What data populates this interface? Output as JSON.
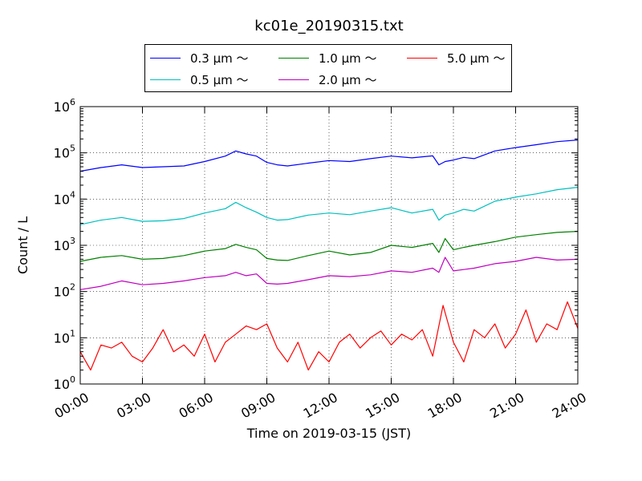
{
  "chart_data": {
    "type": "line",
    "title": "kc01e_20190315.txt",
    "xlabel": "Time on 2019-03-15 (JST)",
    "ylabel": "Count / L",
    "yscale": "log",
    "ylim": [
      1,
      1000000
    ],
    "yticks": [
      "10^0",
      "10^1",
      "10^2",
      "10^3",
      "10^4",
      "10^5",
      "10^6"
    ],
    "xlim": [
      0,
      24
    ],
    "xticks": [
      "00:00",
      "03:00",
      "06:00",
      "09:00",
      "12:00",
      "15:00",
      "18:00",
      "21:00",
      "24:00"
    ],
    "grid": true,
    "legend_position": "top",
    "series": [
      {
        "name": "0.3 μm ～",
        "color": "#0000ff",
        "x": [
          0,
          1,
          2,
          3,
          4,
          5,
          6,
          7,
          7.5,
          8,
          8.5,
          9,
          9.5,
          10,
          11,
          12,
          13,
          14,
          15,
          16,
          17,
          17.3,
          17.6,
          18,
          18.5,
          19,
          20,
          21,
          22,
          23,
          24
        ],
        "y": [
          40000,
          48000,
          55000,
          48000,
          50000,
          52000,
          65000,
          85000,
          110000,
          95000,
          85000,
          62000,
          55000,
          52000,
          60000,
          68000,
          65000,
          75000,
          85000,
          78000,
          86000,
          55000,
          65000,
          70000,
          80000,
          75000,
          110000,
          130000,
          150000,
          175000,
          190000
        ]
      },
      {
        "name": "0.5 μm ～",
        "color": "#00bfbf",
        "x": [
          0,
          1,
          2,
          3,
          4,
          5,
          6,
          7,
          7.5,
          8,
          8.5,
          9,
          9.5,
          10,
          11,
          12,
          13,
          14,
          15,
          16,
          17,
          17.3,
          17.6,
          18,
          18.5,
          19,
          20,
          21,
          22,
          23,
          24
        ],
        "y": [
          2800,
          3500,
          4000,
          3300,
          3400,
          3800,
          5000,
          6200,
          8500,
          6500,
          5200,
          4000,
          3500,
          3600,
          4500,
          5000,
          4600,
          5500,
          6500,
          5000,
          6000,
          3500,
          4500,
          5000,
          6000,
          5500,
          9000,
          11000,
          13000,
          16000,
          18000
        ]
      },
      {
        "name": "1.0 μm ～",
        "color": "#008000",
        "x": [
          0,
          1,
          2,
          3,
          4,
          5,
          6,
          7,
          7.5,
          8,
          8.5,
          9,
          9.5,
          10,
          11,
          12,
          13,
          14,
          15,
          16,
          17,
          17.3,
          17.6,
          18,
          18.5,
          19,
          20,
          21,
          22,
          23,
          24
        ],
        "y": [
          450,
          550,
          600,
          500,
          520,
          600,
          750,
          850,
          1050,
          900,
          800,
          520,
          480,
          470,
          600,
          750,
          620,
          700,
          1000,
          900,
          1100,
          700,
          1400,
          800,
          900,
          1000,
          1200,
          1500,
          1700,
          1900,
          2000
        ]
      },
      {
        "name": "2.0 μm ～",
        "color": "#bf00bf",
        "x": [
          0,
          1,
          2,
          3,
          4,
          5,
          6,
          7,
          7.5,
          8,
          8.5,
          9,
          9.5,
          10,
          11,
          12,
          13,
          14,
          15,
          16,
          17,
          17.3,
          17.6,
          18,
          18.5,
          19,
          20,
          21,
          22,
          23,
          24
        ],
        "y": [
          110,
          130,
          170,
          140,
          150,
          170,
          200,
          220,
          260,
          220,
          240,
          150,
          145,
          150,
          180,
          220,
          210,
          230,
          280,
          260,
          320,
          260,
          550,
          280,
          300,
          320,
          400,
          450,
          550,
          480,
          500
        ]
      },
      {
        "name": "5.0 μm ～",
        "color": "#ff0000",
        "x": [
          0,
          0.5,
          1,
          1.5,
          2,
          2.5,
          3,
          3.5,
          4,
          4.5,
          5,
          5.5,
          6,
          6.5,
          7,
          7.5,
          8,
          8.5,
          9,
          9.5,
          10,
          10.5,
          11,
          11.5,
          12,
          12.5,
          13,
          13.5,
          14,
          14.5,
          15,
          15.5,
          16,
          16.5,
          17,
          17.5,
          18,
          18.5,
          19,
          19.5,
          20,
          20.5,
          21,
          21.5,
          22,
          22.5,
          23,
          23.5,
          24
        ],
        "y": [
          5,
          2,
          7,
          6,
          8,
          4,
          3,
          6,
          15,
          5,
          7,
          4,
          12,
          3,
          8,
          12,
          18,
          15,
          20,
          6,
          3,
          8,
          2,
          5,
          3,
          8,
          12,
          6,
          10,
          14,
          7,
          12,
          9,
          15,
          4,
          50,
          8,
          3,
          15,
          10,
          20,
          6,
          12,
          40,
          8,
          20,
          15,
          60,
          16
        ]
      }
    ]
  }
}
